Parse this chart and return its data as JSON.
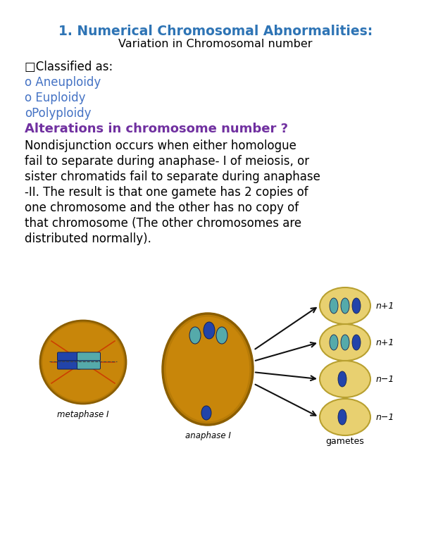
{
  "bg_color": "#ffffff",
  "title_line1": "1. Numerical Chromosomal Abnormalities:",
  "title_line1_color": "#2E74B5",
  "title_line2": "Variation in Chromosomal number",
  "title_line2_color": "#000000",
  "classified_text": "□Classified as:",
  "classified_color": "#000000",
  "bullet_items": [
    {
      "text": "o Aneuploidy",
      "color": "#4472C4"
    },
    {
      "text": "o Euploidy",
      "color": "#4472C4"
    },
    {
      "text": "oPolyploidy",
      "color": "#4472C4"
    }
  ],
  "alteration_text": "Alterations in chromosome number ?",
  "alteration_color": "#7030A0",
  "body_lines": [
    "Nondisjunction occurs when either homologue",
    "fail to separate during anaphase- I of meiosis, or",
    "sister chromatids fail to separate during anaphase",
    "-II. The result is that one gamete has 2 copies of",
    "one chromosome and the other has no copy of",
    "that chromosome (The other chromosomes are",
    "distributed normally)."
  ],
  "body_color": "#000000",
  "title_fontsize": 13.5,
  "subtitle_fontsize": 11.5,
  "body_fontsize": 12,
  "bullet_fontsize": 12,
  "alteration_fontsize": 13,
  "cell_color": "#C8860A",
  "cell_edge": "#8B5E00",
  "gamete_color": "#E8D070",
  "gamete_edge": "#B8A030",
  "chrom_blue": "#2244AA",
  "chrom_teal": "#55AAAA",
  "arrow_color": "#111111",
  "label_color": "#000000",
  "spindle_color": "#CC3300"
}
